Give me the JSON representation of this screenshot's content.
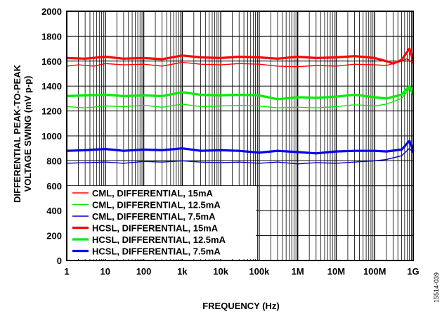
{
  "chart_data": {
    "type": "line",
    "xlabel": "FREQUENCY (Hz)",
    "ylabel_line1": "DIFFERENTIAL PEAK-TO-PEAK",
    "ylabel_line2": "VOLTAGE SWING (mV p-p)",
    "x_scale": "log",
    "xlim": [
      1,
      1000000000
    ],
    "ylim": [
      0,
      2000
    ],
    "x_ticks": [
      1,
      10,
      100,
      1000,
      10000,
      100000,
      1000000,
      10000000,
      100000000,
      1000000000
    ],
    "x_tick_labels": [
      "1",
      "10",
      "100",
      "1k",
      "10k",
      "100k",
      "1M",
      "10M",
      "100M",
      "1G"
    ],
    "y_ticks": [
      0,
      200,
      400,
      600,
      800,
      1000,
      1200,
      1400,
      1600,
      1800,
      2000
    ],
    "y_tick_labels": [
      "0",
      "200",
      "400",
      "600",
      "800",
      "1000",
      "1200",
      "1400",
      "1600",
      "1800",
      "2000"
    ],
    "grid": true,
    "legend_position": "bottom-left",
    "figure_id": "15514-039",
    "series": [
      {
        "name": "CML, DIFFERENTIAL, 15mA",
        "color": "#ff0000",
        "width": "thin",
        "points": [
          [
            1,
            1560
          ],
          [
            2,
            1570
          ],
          [
            5,
            1560
          ],
          [
            10,
            1580
          ],
          [
            30,
            1570
          ],
          [
            100,
            1575
          ],
          [
            300,
            1560
          ],
          [
            1000,
            1590
          ],
          [
            3000,
            1575
          ],
          [
            10000,
            1570
          ],
          [
            30000,
            1580
          ],
          [
            100000,
            1575
          ],
          [
            300000,
            1560
          ],
          [
            1000000,
            1555
          ],
          [
            3000000,
            1565
          ],
          [
            10000000,
            1560
          ],
          [
            30000000,
            1575
          ],
          [
            100000000,
            1570
          ],
          [
            200000000,
            1565
          ],
          [
            400000000,
            1590
          ],
          [
            700000000,
            1620
          ],
          [
            1000000000,
            1580
          ]
        ]
      },
      {
        "name": "CML, DIFFERENTIAL, 12.5mA",
        "color": "#00ee00",
        "width": "thin",
        "points": [
          [
            1,
            1235
          ],
          [
            3,
            1225
          ],
          [
            10,
            1240
          ],
          [
            30,
            1235
          ],
          [
            100,
            1245
          ],
          [
            300,
            1230
          ],
          [
            1000,
            1255
          ],
          [
            3000,
            1235
          ],
          [
            10000,
            1240
          ],
          [
            30000,
            1245
          ],
          [
            100000,
            1240
          ],
          [
            300000,
            1225
          ],
          [
            1000000,
            1230
          ],
          [
            3000000,
            1225
          ],
          [
            10000000,
            1235
          ],
          [
            30000000,
            1250
          ],
          [
            100000000,
            1240
          ],
          [
            200000000,
            1255
          ],
          [
            500000000,
            1300
          ],
          [
            800000000,
            1380
          ],
          [
            1000000000,
            1320
          ]
        ]
      },
      {
        "name": "CML, DIFFERENTIAL, 7.5mA",
        "color": "#0000cc",
        "width": "thin",
        "points": [
          [
            1,
            780
          ],
          [
            3,
            785
          ],
          [
            10,
            790
          ],
          [
            30,
            780
          ],
          [
            100,
            795
          ],
          [
            300,
            790
          ],
          [
            1000,
            800
          ],
          [
            3000,
            790
          ],
          [
            10000,
            785
          ],
          [
            30000,
            790
          ],
          [
            100000,
            780
          ],
          [
            300000,
            790
          ],
          [
            1000000,
            775
          ],
          [
            3000000,
            785
          ],
          [
            10000000,
            780
          ],
          [
            30000000,
            790
          ],
          [
            100000000,
            800
          ],
          [
            200000000,
            810
          ],
          [
            500000000,
            840
          ],
          [
            800000000,
            900
          ],
          [
            1000000000,
            860
          ]
        ]
      },
      {
        "name": "HCSL, DIFFERENTIAL, 15mA",
        "color": "#ff0000",
        "width": "thick",
        "points": [
          [
            1,
            1625
          ],
          [
            3,
            1620
          ],
          [
            10,
            1635
          ],
          [
            30,
            1620
          ],
          [
            100,
            1625
          ],
          [
            300,
            1615
          ],
          [
            1000,
            1645
          ],
          [
            3000,
            1630
          ],
          [
            10000,
            1625
          ],
          [
            30000,
            1635
          ],
          [
            100000,
            1630
          ],
          [
            300000,
            1620
          ],
          [
            1000000,
            1635
          ],
          [
            3000000,
            1625
          ],
          [
            10000000,
            1630
          ],
          [
            30000000,
            1640
          ],
          [
            100000000,
            1625
          ],
          [
            200000000,
            1600
          ],
          [
            300000000,
            1580
          ],
          [
            500000000,
            1610
          ],
          [
            800000000,
            1700
          ],
          [
            1000000000,
            1600
          ]
        ]
      },
      {
        "name": "HCSL, DIFFERENTIAL, 12.5mA",
        "color": "#00ee00",
        "width": "thick",
        "points": [
          [
            1,
            1320
          ],
          [
            3,
            1325
          ],
          [
            10,
            1330
          ],
          [
            30,
            1320
          ],
          [
            100,
            1325
          ],
          [
            300,
            1320
          ],
          [
            1000,
            1350
          ],
          [
            3000,
            1330
          ],
          [
            10000,
            1325
          ],
          [
            30000,
            1330
          ],
          [
            100000,
            1325
          ],
          [
            300000,
            1295
          ],
          [
            1000000,
            1310
          ],
          [
            3000000,
            1305
          ],
          [
            10000000,
            1315
          ],
          [
            30000000,
            1330
          ],
          [
            100000000,
            1310
          ],
          [
            200000000,
            1300
          ],
          [
            500000000,
            1330
          ],
          [
            800000000,
            1400
          ],
          [
            1000000000,
            1330
          ]
        ]
      },
      {
        "name": "HCSL, DIFFERENTIAL, 7.5mA",
        "color": "#0000ee",
        "width": "thick",
        "points": [
          [
            1,
            880
          ],
          [
            3,
            885
          ],
          [
            10,
            895
          ],
          [
            30,
            880
          ],
          [
            100,
            890
          ],
          [
            300,
            885
          ],
          [
            1000,
            900
          ],
          [
            3000,
            880
          ],
          [
            10000,
            885
          ],
          [
            30000,
            880
          ],
          [
            100000,
            865
          ],
          [
            300000,
            880
          ],
          [
            1000000,
            870
          ],
          [
            3000000,
            860
          ],
          [
            10000000,
            875
          ],
          [
            30000000,
            880
          ],
          [
            100000000,
            880
          ],
          [
            200000000,
            875
          ],
          [
            500000000,
            890
          ],
          [
            800000000,
            960
          ],
          [
            1000000000,
            880
          ]
        ]
      }
    ]
  }
}
